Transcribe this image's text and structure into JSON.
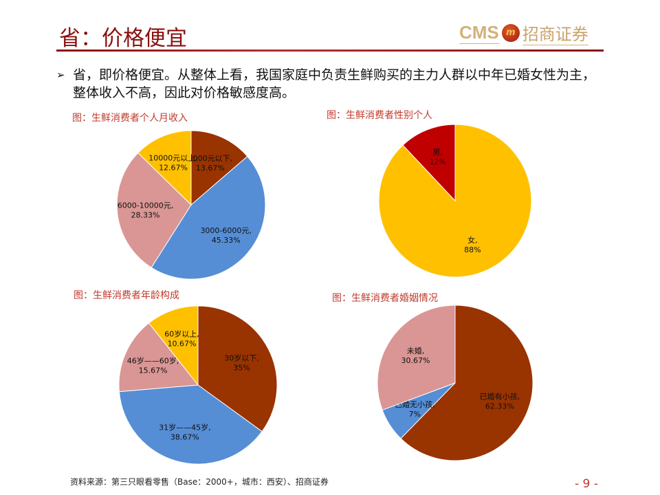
{
  "header": {
    "title": "省：价格便宜",
    "logo_text": "CMS",
    "logo_seal": "m",
    "logo_cn": "招商证券"
  },
  "bullet": {
    "text": "省，即价格便宜。从整体上看，我国家庭中负责生鲜购买的主力人群以中年已婚女性为主，整体收入不高，因此对价格敏感度高。"
  },
  "footer": {
    "source": "资料来源：第三只眼看零售（Base：2000+，城市：西安）、招商证券",
    "page": "- 9 -"
  },
  "chart_data": [
    {
      "type": "pie",
      "title": "图：生鲜消费者个人月收入",
      "categories": [
        "3000元以下",
        "3000-6000元",
        "6000-10000元",
        "10000元以上"
      ],
      "values": [
        13.67,
        45.33,
        28.33,
        12.67
      ],
      "colors": [
        "#993300",
        "#558ED5",
        "#D99694",
        "#FFC000"
      ]
    },
    {
      "type": "pie",
      "title": "图：生鲜消费者性别个人",
      "categories": [
        "女",
        "男"
      ],
      "values": [
        88,
        12
      ],
      "colors": [
        "#FFC000",
        "#C00000"
      ]
    },
    {
      "type": "pie",
      "title": "图：生鲜消费者年龄构成",
      "categories": [
        "30岁以下",
        "31岁——45岁",
        "46岁——60岁",
        "60岁以上"
      ],
      "values": [
        35,
        38.67,
        15.67,
        10.67
      ],
      "colors": [
        "#993300",
        "#558ED5",
        "#D99694",
        "#FFC000"
      ]
    },
    {
      "type": "pie",
      "title": "图：生鲜消费者婚姻情况",
      "categories": [
        "已婚有小孩",
        "已婚无小孩",
        "未婚"
      ],
      "values": [
        62.33,
        7,
        30.67
      ],
      "colors": [
        "#993300",
        "#558ED5",
        "#D99694"
      ]
    }
  ]
}
